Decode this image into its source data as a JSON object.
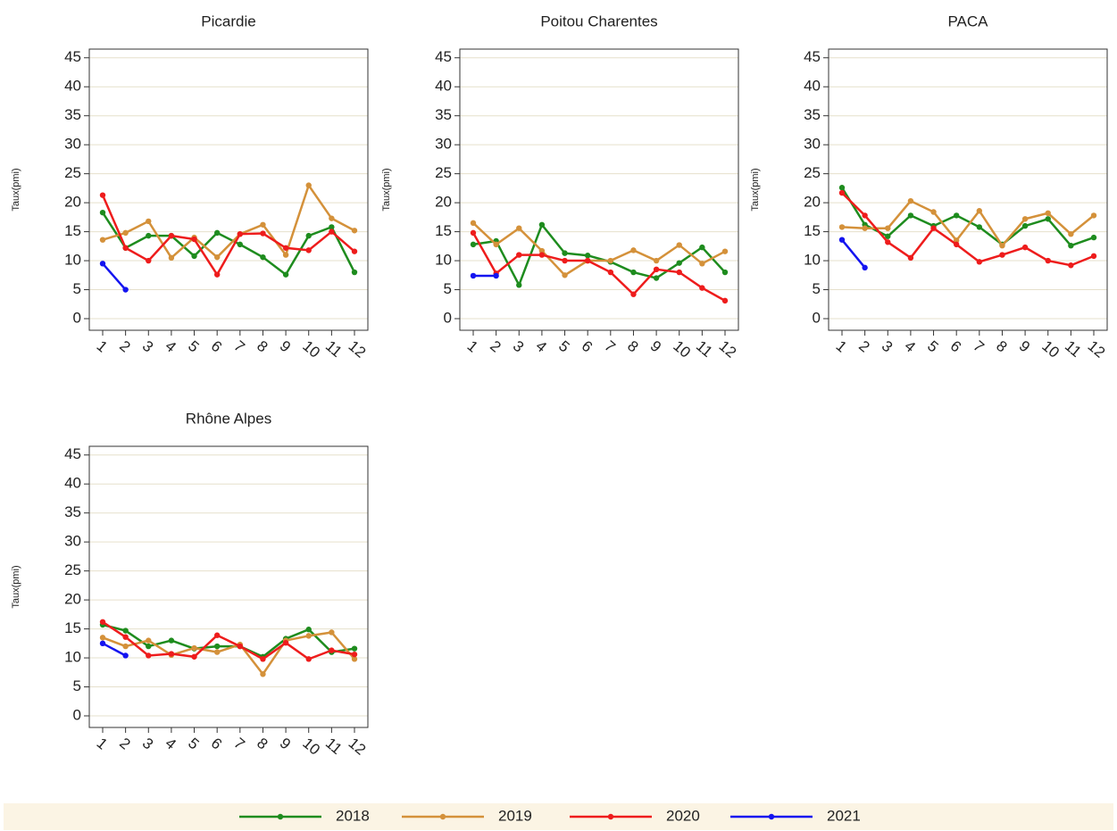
{
  "chart_data": [
    {
      "type": "line",
      "title": "Picardie",
      "ylabel": "Taux(pmi)",
      "categories": [
        "1",
        "2",
        "3",
        "4",
        "5",
        "6",
        "7",
        "8",
        "9",
        "10",
        "11",
        "12"
      ],
      "series": [
        {
          "name": "2018",
          "color": "#1e8c1e",
          "values": [
            18.3,
            12.2,
            14.3,
            14.3,
            10.8,
            14.8,
            12.8,
            10.6,
            7.6,
            14.3,
            15.8,
            8.0
          ]
        },
        {
          "name": "2019",
          "color": "#d4913a",
          "values": [
            13.6,
            14.8,
            16.8,
            10.5,
            14.0,
            10.6,
            14.6,
            16.2,
            11.0,
            23.0,
            17.3,
            15.2
          ]
        },
        {
          "name": "2020",
          "color": "#ee1c1c",
          "values": [
            21.3,
            12.2,
            10.0,
            14.3,
            13.7,
            7.6,
            14.6,
            14.7,
            12.2,
            11.8,
            15.0,
            11.6
          ]
        },
        {
          "name": "2021",
          "color": "#1414f0",
          "values": [
            9.5,
            5.0,
            null,
            null,
            null,
            null,
            null,
            null,
            null,
            null,
            null,
            null
          ]
        }
      ],
      "ylim": [
        -2,
        46.5
      ],
      "yticks": [
        0,
        5,
        10,
        15,
        20,
        25,
        30,
        35,
        40,
        45
      ],
      "grid": true
    },
    {
      "type": "line",
      "title": "Poitou Charentes",
      "ylabel": "Taux(pmi)",
      "categories": [
        "1",
        "2",
        "3",
        "4",
        "5",
        "6",
        "7",
        "8",
        "9",
        "10",
        "11",
        "12"
      ],
      "series": [
        {
          "name": "2018",
          "color": "#1e8c1e",
          "values": [
            12.8,
            13.4,
            5.8,
            16.2,
            11.3,
            10.9,
            9.8,
            8.0,
            7.0,
            9.6,
            12.3,
            8.0
          ]
        },
        {
          "name": "2019",
          "color": "#d4913a",
          "values": [
            16.5,
            12.8,
            15.6,
            11.7,
            7.5,
            10.0,
            10.0,
            11.8,
            10.0,
            12.7,
            9.5,
            11.6
          ]
        },
        {
          "name": "2020",
          "color": "#ee1c1c",
          "values": [
            14.8,
            7.8,
            11.0,
            11.0,
            10.0,
            10.0,
            8.0,
            4.2,
            8.5,
            8.0,
            5.3,
            3.1
          ]
        },
        {
          "name": "2021",
          "color": "#1414f0",
          "values": [
            7.4,
            7.4,
            null,
            null,
            null,
            null,
            null,
            null,
            null,
            null,
            null,
            null
          ]
        }
      ],
      "ylim": [
        -2,
        46.5
      ],
      "yticks": [
        0,
        5,
        10,
        15,
        20,
        25,
        30,
        35,
        40,
        45
      ],
      "grid": true
    },
    {
      "type": "line",
      "title": "PACA",
      "ylabel": "Taux(pmi)",
      "categories": [
        "1",
        "2",
        "3",
        "4",
        "5",
        "6",
        "7",
        "8",
        "9",
        "10",
        "11",
        "12"
      ],
      "series": [
        {
          "name": "2018",
          "color": "#1e8c1e",
          "values": [
            22.6,
            16.2,
            14.2,
            17.8,
            16.0,
            17.8,
            15.8,
            12.8,
            16.0,
            17.2,
            12.6,
            14.0
          ]
        },
        {
          "name": "2019",
          "color": "#d4913a",
          "values": [
            15.8,
            15.6,
            15.6,
            20.3,
            18.4,
            13.5,
            18.6,
            12.6,
            17.2,
            18.2,
            14.6,
            17.8
          ]
        },
        {
          "name": "2020",
          "color": "#ee1c1c",
          "values": [
            21.7,
            17.8,
            13.2,
            10.5,
            15.6,
            12.8,
            9.8,
            11.0,
            12.3,
            10.0,
            9.2,
            10.8
          ]
        },
        {
          "name": "2021",
          "color": "#1414f0",
          "values": [
            13.6,
            8.8,
            null,
            null,
            null,
            null,
            null,
            null,
            null,
            null,
            null,
            null
          ]
        }
      ],
      "ylim": [
        -2,
        46.5
      ],
      "yticks": [
        0,
        5,
        10,
        15,
        20,
        25,
        30,
        35,
        40,
        45
      ],
      "grid": true
    },
    {
      "type": "line",
      "title": "Rhône Alpes",
      "ylabel": "Taux(pmi)",
      "categories": [
        "1",
        "2",
        "3",
        "4",
        "5",
        "6",
        "7",
        "8",
        "9",
        "10",
        "11",
        "12"
      ],
      "series": [
        {
          "name": "2018",
          "color": "#1e8c1e",
          "values": [
            15.7,
            14.7,
            12.0,
            13.0,
            11.6,
            12.0,
            12.0,
            10.2,
            13.3,
            14.9,
            11.0,
            11.6
          ]
        },
        {
          "name": "2019",
          "color": "#d4913a",
          "values": [
            13.5,
            12.0,
            13.0,
            10.5,
            11.7,
            11.0,
            12.3,
            7.2,
            13.0,
            13.8,
            14.4,
            9.8
          ]
        },
        {
          "name": "2020",
          "color": "#ee1c1c",
          "values": [
            16.2,
            13.6,
            10.4,
            10.7,
            10.2,
            13.9,
            12.0,
            9.8,
            12.6,
            9.8,
            11.3,
            10.6
          ]
        },
        {
          "name": "2021",
          "color": "#1414f0",
          "values": [
            12.5,
            10.4,
            null,
            null,
            null,
            null,
            null,
            null,
            null,
            null,
            null,
            null
          ]
        }
      ],
      "ylim": [
        -2,
        46.5
      ],
      "yticks": [
        0,
        5,
        10,
        15,
        20,
        25,
        30,
        35,
        40,
        45
      ],
      "grid": true
    }
  ]
}
